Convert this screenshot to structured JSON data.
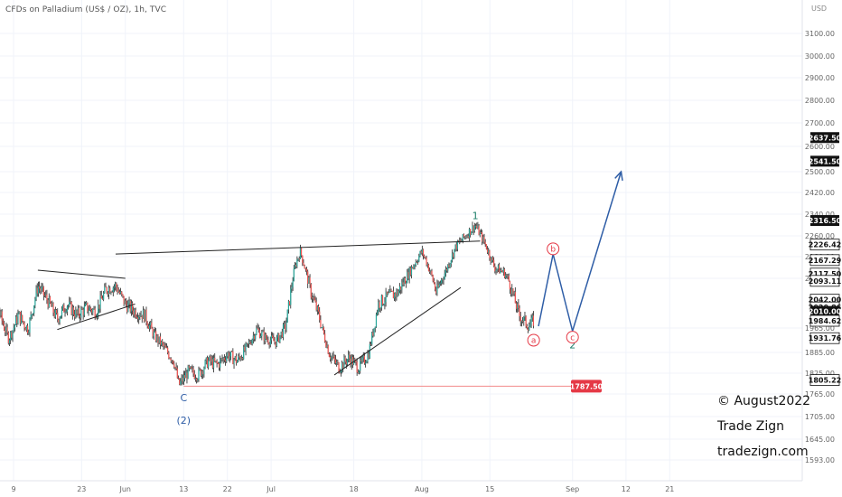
{
  "header": {
    "title": "CFDs on Palladium (US$ / OZ), 1h, TVC",
    "currency": "USD"
  },
  "watermark": {
    "line1": "© August2022",
    "line2": "Trade Zign",
    "line3": "tradezign.com"
  },
  "colors": {
    "up": "#26a69a",
    "down": "#ef5350",
    "candle": "#222222",
    "projection": "#2e5da6",
    "wave_green": "#1e7f6a",
    "wave_blue": "#2e5da6",
    "red": "#e53946",
    "grid": "#f0f3fa"
  },
  "chart_data": {
    "type": "candlestick",
    "symbol": "CFDs on Palladium (US$ / OZ)",
    "interval": "1h",
    "x_ticks": [
      "9",
      "23",
      "Jun",
      "13",
      "22",
      "Jul",
      "18",
      "Aug",
      "15",
      "Sep",
      "12",
      "21"
    ],
    "y_ticks": [
      3100.0,
      3000.0,
      2900.0,
      2800.0,
      2700.0,
      2600.0,
      2500.0,
      2420.0,
      2340.0,
      2260.0,
      2180.0,
      2100.0,
      1965.0,
      1885.0,
      1825.0,
      1765.0,
      1705.0,
      1645.0,
      1593.0
    ],
    "y_range": [
      1540,
      3180
    ],
    "y_badges": [
      {
        "value": "2637.50",
        "style": "dark"
      },
      {
        "value": "2541.50",
        "style": "dark"
      },
      {
        "value": "2316.50",
        "style": "dark"
      },
      {
        "value": "2226.42",
        "style": "light"
      },
      {
        "value": "2167.29",
        "style": "light"
      },
      {
        "value": "2117.50",
        "style": "light"
      },
      {
        "value": "2093.11",
        "style": "light"
      },
      {
        "value": "2042.00",
        "style": "light"
      },
      {
        "value": "2020.86",
        "style": "light"
      },
      {
        "value": "2010.00",
        "style": "dark"
      },
      {
        "value": "1984.62",
        "style": "light"
      },
      {
        "value": "1931.76",
        "style": "light"
      },
      {
        "value": "1805.22",
        "style": "light"
      }
    ],
    "price_path": [
      [
        "May 02",
        2230
      ],
      [
        "May 04",
        2140
      ],
      [
        "May 06",
        2010
      ],
      [
        "May 08",
        1930
      ],
      [
        "May 10",
        2000
      ],
      [
        "May 12",
        1960
      ],
      [
        "May 14",
        2080
      ],
      [
        "May 16",
        2040
      ],
      [
        "May 18",
        1990
      ],
      [
        "May 20",
        2030
      ],
      [
        "May 22",
        2000
      ],
      [
        "May 24",
        2020
      ],
      [
        "May 26",
        2010
      ],
      [
        "May 28",
        2070
      ],
      [
        "May 30",
        2080
      ],
      [
        "Jun 01",
        2030
      ],
      [
        "Jun 03",
        2010
      ],
      [
        "Jun 05",
        2000
      ],
      [
        "Jun 07",
        1940
      ],
      [
        "Jun 09",
        1900
      ],
      [
        "Jun 11",
        1860
      ],
      [
        "Jun 12",
        1790
      ],
      [
        "Jun 14",
        1830
      ],
      [
        "Jun 16",
        1820
      ],
      [
        "Jun 18",
        1860
      ],
      [
        "Jun 20",
        1850
      ],
      [
        "Jun 22",
        1880
      ],
      [
        "Jun 24",
        1860
      ],
      [
        "Jun 26",
        1900
      ],
      [
        "Jun 28",
        1960
      ],
      [
        "Jun 30",
        1930
      ],
      [
        "Jul 02",
        1920
      ],
      [
        "Jul 04",
        1970
      ],
      [
        "Jul 06",
        2150
      ],
      [
        "Jul 07",
        2200
      ],
      [
        "Jul 09",
        2070
      ],
      [
        "Jul 11",
        1990
      ],
      [
        "Jul 13",
        1880
      ],
      [
        "Jul 15",
        1840
      ],
      [
        "Jul 17",
        1870
      ],
      [
        "Jul 19",
        1840
      ],
      [
        "Jul 21",
        1880
      ],
      [
        "Jul 23",
        2030
      ],
      [
        "Jul 25",
        2050
      ],
      [
        "Jul 27",
        2060
      ],
      [
        "Jul 29",
        2110
      ],
      [
        "Aug 01",
        2200
      ],
      [
        "Aug 02",
        2160
      ],
      [
        "Aug 04",
        2060
      ],
      [
        "Aug 06",
        2130
      ],
      [
        "Aug 08",
        2220
      ],
      [
        "Aug 10",
        2260
      ],
      [
        "Aug 12",
        2300
      ],
      [
        "Aug 14",
        2230
      ],
      [
        "Aug 16",
        2140
      ],
      [
        "Aug 18",
        2120
      ],
      [
        "Aug 19",
        2090
      ],
      [
        "Aug 21",
        2000
      ],
      [
        "Aug 23",
        1970
      ],
      [
        "Aug 24",
        1985
      ]
    ],
    "projection_path": [
      [
        "Aug 25",
        1970
      ],
      [
        "Aug 28",
        2190
      ],
      [
        "Sep 01",
        1955
      ],
      [
        "Sep 11",
        2500
      ]
    ],
    "support_line": {
      "value": "1787.50"
    },
    "trendlines": [
      {
        "name": "upper-triangle-line"
      },
      {
        "name": "lower-triangle-line"
      },
      {
        "name": "upper-channel-line"
      },
      {
        "name": "lower-channel-line"
      }
    ],
    "wave_labels": [
      {
        "text": "1",
        "color": "green"
      },
      {
        "text": "2",
        "color": "green"
      },
      {
        "text": "C",
        "color": "blue"
      },
      {
        "text": "(2)",
        "color": "blue"
      },
      {
        "text": "a",
        "color": "red-circle"
      },
      {
        "text": "b",
        "color": "red-circle"
      },
      {
        "text": "c",
        "color": "red-circle"
      }
    ]
  }
}
